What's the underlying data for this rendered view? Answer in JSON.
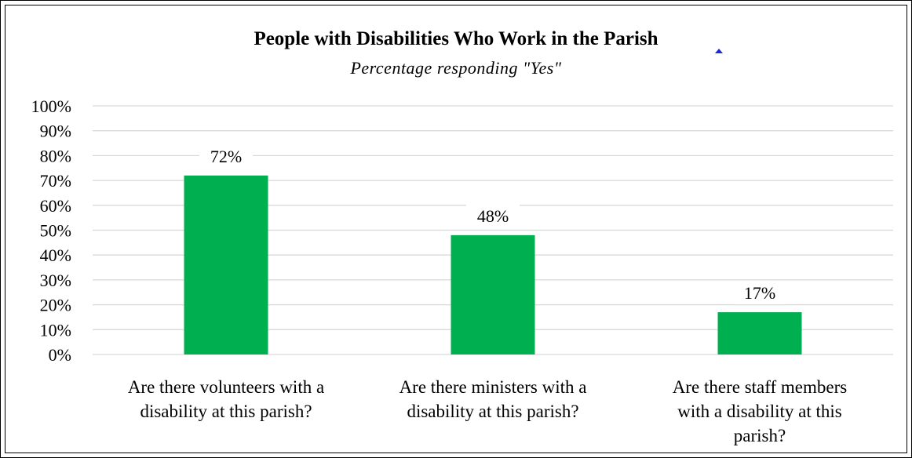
{
  "chart_data": {
    "type": "bar",
    "title": "People with Disabilities Who Work in the Parish",
    "subtitle": "Percentage responding \"Yes\"",
    "categories": [
      [
        "Are there volunteers with a",
        "disability at this parish?"
      ],
      [
        "Are there ministers with a",
        "disability at this parish?"
      ],
      [
        "Are there staff members",
        "with a disability at this",
        "parish?"
      ]
    ],
    "values": [
      72,
      48,
      17
    ],
    "data_labels": [
      "72%",
      "48%",
      "17%"
    ],
    "ylim": [
      0,
      100
    ],
    "yticks": [
      "0%",
      "10%",
      "20%",
      "30%",
      "40%",
      "50%",
      "60%",
      "70%",
      "80%",
      "90%",
      "100%"
    ],
    "grid": true,
    "bar_color": "#00b050",
    "gridline_color": "#d9d9d9"
  }
}
